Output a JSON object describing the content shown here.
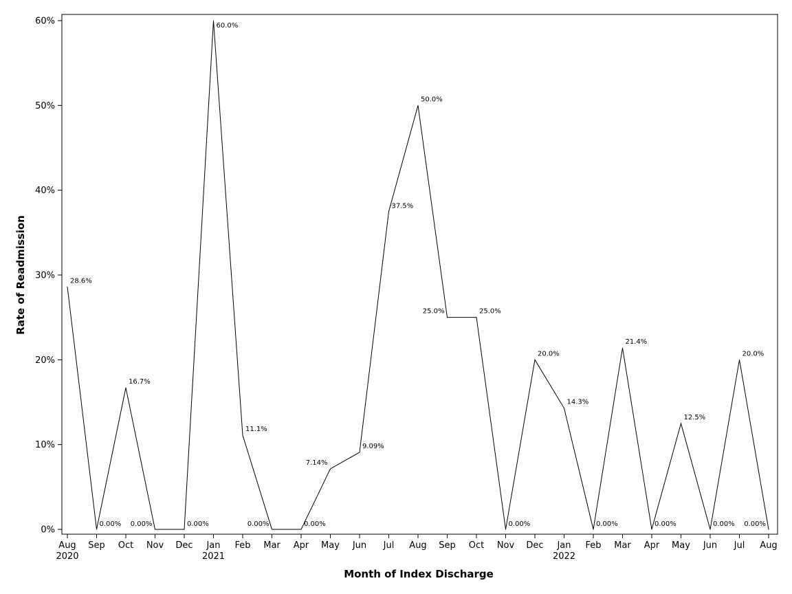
{
  "chart_data": {
    "type": "line",
    "xlabel": "Month of Index Discharge",
    "ylabel": "Rate of Readmission",
    "ylim": [
      0,
      60
    ],
    "y_ticks": [
      0,
      10,
      20,
      30,
      40,
      50,
      60
    ],
    "y_tick_labels": [
      "0%",
      "10%",
      "20%",
      "30%",
      "40%",
      "50%",
      "60%"
    ],
    "categories": [
      "Aug",
      "Sep",
      "Oct",
      "Nov",
      "Dec",
      "Jan",
      "Feb",
      "Mar",
      "Apr",
      "May",
      "Jun",
      "Jul",
      "Aug",
      "Sep",
      "Oct",
      "Nov",
      "Dec",
      "Jan",
      "Feb",
      "Mar",
      "Apr",
      "May",
      "Jun",
      "Jul",
      "Aug"
    ],
    "year_labels": [
      {
        "index": 0,
        "label": "2020"
      },
      {
        "index": 5,
        "label": "2021"
      },
      {
        "index": 17,
        "label": "2022"
      }
    ],
    "values": [
      28.6,
      0,
      16.7,
      0,
      0,
      60.0,
      11.1,
      0,
      0,
      7.14,
      9.09,
      37.5,
      50.0,
      25.0,
      25.0,
      0,
      20.0,
      14.3,
      0,
      21.4,
      0,
      12.5,
      0,
      20.0,
      0
    ],
    "data_labels": [
      "28.6%",
      "0.00%",
      "16.7%",
      "0.00%",
      "0.00%",
      "60.0%",
      "11.1%",
      "0.00%",
      "0.00%",
      "7.14%",
      "9.09%",
      "37.5%",
      "50.0%",
      "25.0%",
      "25.0%",
      "0.00%",
      "20.0%",
      "14.3%",
      "0.00%",
      "21.4%",
      "0.00%",
      "12.5%",
      "0.00%",
      "20.0%",
      "0.00%"
    ],
    "line_color": "#000000",
    "grid": false
  }
}
